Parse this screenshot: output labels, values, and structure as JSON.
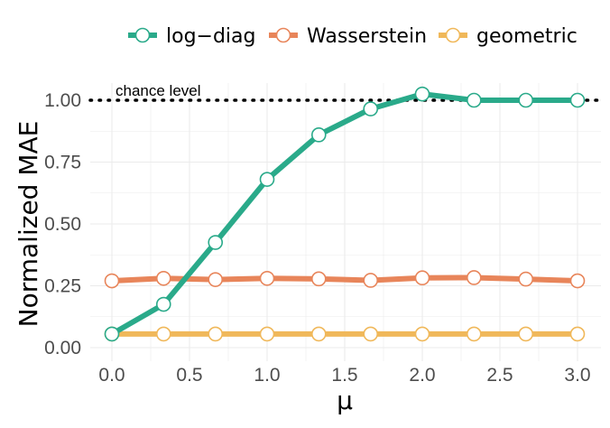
{
  "chart_data": {
    "type": "line",
    "title": "",
    "xlabel": "μ",
    "ylabel": "Normalized MAE",
    "xlim": [
      -0.1,
      3.1
    ],
    "ylim": [
      0.0,
      1.1
    ],
    "x_ticks": [
      "0.0",
      "0.5",
      "1.0",
      "1.5",
      "2.0",
      "2.5",
      "3.0"
    ],
    "y_ticks": [
      "0.00",
      "0.25",
      "0.50",
      "0.75",
      "1.00"
    ],
    "grid": true,
    "legend_position": "top",
    "x": [
      0.0,
      0.333,
      0.667,
      1.0,
      1.333,
      1.667,
      2.0,
      2.333,
      2.667,
      3.0
    ],
    "series": [
      {
        "name": "log−diag",
        "color": "#2aaa8a",
        "values": [
          0.055,
          0.175,
          0.425,
          0.68,
          0.86,
          0.965,
          1.025,
          1.0,
          1.0,
          1.0
        ]
      },
      {
        "name": "Wasserstein",
        "color": "#e8855a",
        "values": [
          0.27,
          0.28,
          0.275,
          0.28,
          0.278,
          0.272,
          0.282,
          0.283,
          0.277,
          0.27
        ]
      },
      {
        "name": "geometric",
        "color": "#f0b85a",
        "values": [
          0.055,
          0.055,
          0.055,
          0.055,
          0.055,
          0.055,
          0.055,
          0.055,
          0.055,
          0.055
        ]
      }
    ],
    "reference_line": {
      "y": 1.0,
      "label": "chance level",
      "style": "dotted"
    }
  }
}
